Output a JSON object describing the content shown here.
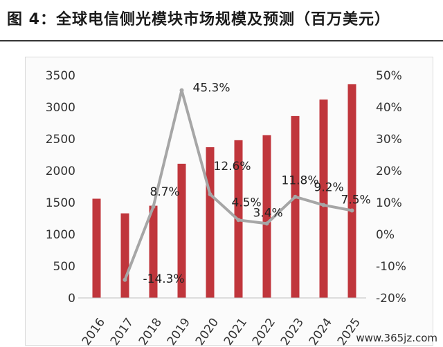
{
  "title": "图 4：全球电信侧光模块市场规模及预测（百万美元）",
  "watermark": "www.365jz.com",
  "chart_data": {
    "type": "bar",
    "categories": [
      "2016",
      "2017",
      "2018",
      "2019",
      "2020",
      "2021",
      "2022",
      "2023",
      "2024",
      "2025"
    ],
    "series": [
      {
        "values": [
          1560,
          1330,
          1450,
          2110,
          2370,
          2480,
          2560,
          2860,
          3120,
          3360
        ],
        "color": "#c0363c",
        "axis": "left"
      },
      {
        "type": "line",
        "values": [
          null,
          -14.3,
          8.7,
          45.3,
          12.6,
          4.5,
          3.4,
          11.8,
          9.2,
          7.5
        ],
        "color": "#a6a6a6",
        "axis": "right"
      }
    ],
    "data_labels": [
      "-14.3%",
      "8.7%",
      "45.3%",
      "12.6%",
      "4.5%",
      "3.4%",
      "11.8%",
      "9.2%",
      "7.5%"
    ],
    "ylim": [
      0,
      3500
    ],
    "ylim_right": [
      -20,
      50
    ],
    "yticks": [
      "0",
      "500",
      "1000",
      "1500",
      "2000",
      "2500",
      "3000",
      "3500"
    ],
    "yticks_right": [
      "-20%",
      "-10%",
      "0%",
      "10%",
      "20%",
      "30%",
      "40%",
      "50%"
    ],
    "grid": false
  }
}
